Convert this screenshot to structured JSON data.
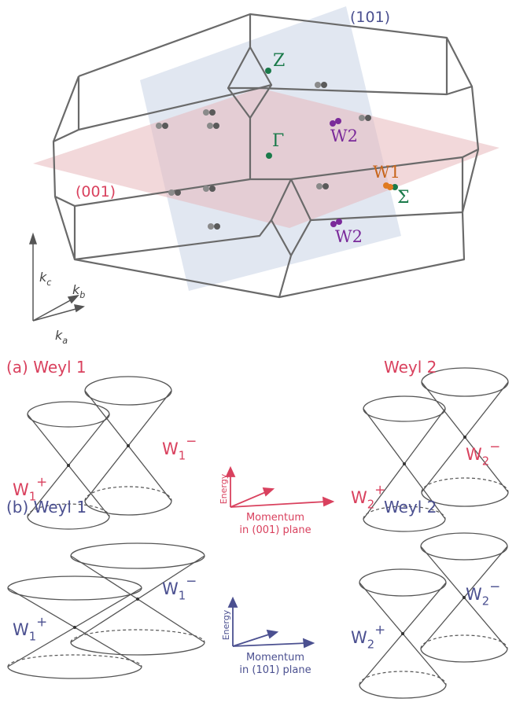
{
  "brillouin_zone": {
    "plane_101": "(101)",
    "plane_001": "(001)",
    "points": {
      "Z": "Z",
      "Gamma": "Γ",
      "W2_upper": "W2",
      "W1": "W1",
      "Sigma": "Σ",
      "W2_lower": "W2"
    },
    "axes": {
      "kc": {
        "base": "k",
        "sub": "c"
      },
      "kb": {
        "base": "k",
        "sub": "b"
      },
      "ka": {
        "base": "k",
        "sub": "a"
      }
    }
  },
  "panel_a": {
    "left_title": "(a) Weyl 1",
    "right_title": "Weyl 2",
    "w1_plus": {
      "base": "W",
      "sub": "1",
      "sup": "+"
    },
    "w1_minus": {
      "base": "W",
      "sub": "1",
      "sup": "−"
    },
    "w2_plus": {
      "base": "W",
      "sub": "2",
      "sup": "+"
    },
    "w2_minus": {
      "base": "W",
      "sub": "2",
      "sup": "−"
    },
    "energy": "Energy",
    "momentum": "Momentum",
    "plane": "in (001) plane"
  },
  "panel_b": {
    "left_title": "(b) Weyl 1",
    "right_title": "Weyl 2",
    "w1_plus": {
      "base": "W",
      "sub": "1",
      "sup": "+"
    },
    "w1_minus": {
      "base": "W",
      "sub": "1",
      "sup": "−"
    },
    "w2_plus": {
      "base": "W",
      "sub": "2",
      "sup": "+"
    },
    "w2_minus": {
      "base": "W",
      "sub": "2",
      "sup": "−"
    },
    "energy": "Energy",
    "momentum": "Momentum",
    "plane": "in (101) plane"
  }
}
